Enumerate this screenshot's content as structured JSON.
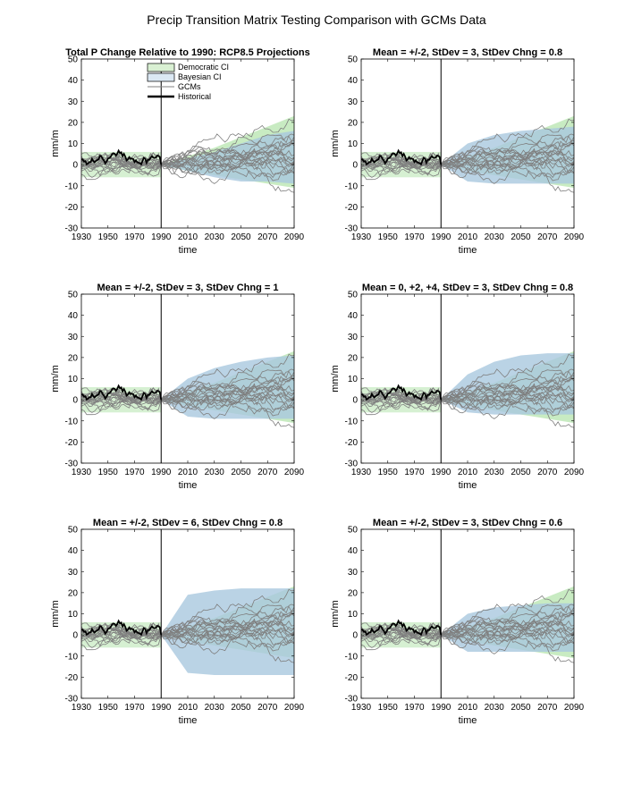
{
  "figure_title": "Precip Transition Matrix Testing Comparison with GCMs Data",
  "legend": {
    "entries": [
      {
        "label": "Democratic CI",
        "kind": "patch",
        "color": "#d9f0d3"
      },
      {
        "label": "Bayesian CI",
        "kind": "patch",
        "color": "#dbe8f3"
      },
      {
        "label": "GCMs",
        "kind": "line",
        "color": "#808080"
      },
      {
        "label": "Historical",
        "kind": "line",
        "color": "#000000"
      }
    ]
  },
  "colors": {
    "democratic_ci": "#b5e4ad",
    "bayesian_ci": "#a9c8df",
    "gcm": "#7f7f7f",
    "historical": "#000000"
  },
  "chart_data": [
    {
      "type": "line",
      "title": "Total P Change Relative to 1990: RCP8.5 Projections",
      "xlabel": "time",
      "ylabel": "mm/m",
      "xlim": [
        1930,
        2090
      ],
      "ylim": [
        -30,
        50
      ],
      "xticks": [
        1930,
        1950,
        1970,
        1990,
        2010,
        2030,
        2050,
        2070,
        2090
      ],
      "yticks": [
        -30,
        -20,
        -10,
        0,
        10,
        20,
        30,
        40,
        50
      ],
      "vline_x": 1990,
      "democratic_ci": {
        "x": [
          1990,
          2010,
          2030,
          2050,
          2070,
          2090
        ],
        "upper": [
          0,
          4,
          8,
          13,
          18,
          23
        ],
        "lower": [
          0,
          -3,
          -5,
          -7,
          -9,
          -11
        ]
      },
      "bayesian_ci": {
        "x": [
          1990,
          2010,
          2030,
          2050,
          2070,
          2090
        ],
        "upper": [
          0,
          3,
          6,
          10,
          14,
          16
        ],
        "lower": [
          0,
          -3,
          -6,
          -8,
          -8,
          -9
        ]
      },
      "historical_ci": {
        "upper": 6,
        "lower": -6
      },
      "legend": true
    },
    {
      "type": "line",
      "title": "Mean = +/-2, StDev = 3, StDev Chng = 0.8",
      "xlabel": "time",
      "ylabel": "mm/m",
      "xlim": [
        1930,
        2090
      ],
      "ylim": [
        -30,
        50
      ],
      "xticks": [
        1930,
        1950,
        1970,
        1990,
        2010,
        2030,
        2050,
        2070,
        2090
      ],
      "yticks": [
        -30,
        -20,
        -10,
        0,
        10,
        20,
        30,
        40,
        50
      ],
      "vline_x": 1990,
      "democratic_ci": {
        "x": [
          1990,
          2010,
          2030,
          2050,
          2070,
          2090
        ],
        "upper": [
          0,
          4,
          8,
          13,
          18,
          23
        ],
        "lower": [
          0,
          -3,
          -5,
          -7,
          -9,
          -11
        ]
      },
      "bayesian_ci": {
        "x": [
          1990,
          2010,
          2030,
          2050,
          2070,
          2090
        ],
        "upper": [
          0,
          10,
          14,
          16,
          17,
          18
        ],
        "lower": [
          0,
          -8,
          -9,
          -9,
          -9,
          -9
        ]
      },
      "historical_ci": {
        "upper": 6,
        "lower": -6
      },
      "legend": false
    },
    {
      "type": "line",
      "title": "Mean = +/-2, StDev = 3, StDev Chng = 1",
      "xlabel": "time",
      "ylabel": "mm/m",
      "xlim": [
        1930,
        2090
      ],
      "ylim": [
        -30,
        50
      ],
      "xticks": [
        1930,
        1950,
        1970,
        1990,
        2010,
        2030,
        2050,
        2070,
        2090
      ],
      "yticks": [
        -30,
        -20,
        -10,
        0,
        10,
        20,
        30,
        40,
        50
      ],
      "vline_x": 1990,
      "democratic_ci": {
        "x": [
          1990,
          2010,
          2030,
          2050,
          2070,
          2090
        ],
        "upper": [
          0,
          4,
          8,
          13,
          18,
          23
        ],
        "lower": [
          0,
          -3,
          -5,
          -7,
          -9,
          -11
        ]
      },
      "bayesian_ci": {
        "x": [
          1990,
          2010,
          2030,
          2050,
          2070,
          2090
        ],
        "upper": [
          0,
          10,
          15,
          18,
          20,
          21
        ],
        "lower": [
          0,
          -8,
          -9,
          -9,
          -9,
          -9
        ]
      },
      "historical_ci": {
        "upper": 6,
        "lower": -6
      },
      "legend": false
    },
    {
      "type": "line",
      "title": "Mean = 0, +2, +4, StDev = 3, StDev Chng = 0.8",
      "xlabel": "time",
      "ylabel": "mm/m",
      "xlim": [
        1930,
        2090
      ],
      "ylim": [
        -30,
        50
      ],
      "xticks": [
        1930,
        1950,
        1970,
        1990,
        2010,
        2030,
        2050,
        2070,
        2090
      ],
      "yticks": [
        -30,
        -20,
        -10,
        0,
        10,
        20,
        30,
        40,
        50
      ],
      "vline_x": 1990,
      "democratic_ci": {
        "x": [
          1990,
          2010,
          2030,
          2050,
          2070,
          2090
        ],
        "upper": [
          0,
          4,
          8,
          13,
          18,
          23
        ],
        "lower": [
          0,
          -3,
          -5,
          -7,
          -9,
          -11
        ]
      },
      "bayesian_ci": {
        "x": [
          1990,
          2010,
          2030,
          2050,
          2070,
          2090
        ],
        "upper": [
          0,
          12,
          18,
          21,
          22,
          22
        ],
        "lower": [
          0,
          -6,
          -7,
          -7,
          -7,
          -7
        ]
      },
      "historical_ci": {
        "upper": 6,
        "lower": -6
      },
      "legend": false
    },
    {
      "type": "line",
      "title": "Mean = +/-2, StDev = 6, StDev Chng = 0.8",
      "xlabel": "time",
      "ylabel": "mm/m",
      "xlim": [
        1930,
        2090
      ],
      "ylim": [
        -30,
        50
      ],
      "xticks": [
        1930,
        1950,
        1970,
        1990,
        2010,
        2030,
        2050,
        2070,
        2090
      ],
      "yticks": [
        -30,
        -20,
        -10,
        0,
        10,
        20,
        30,
        40,
        50
      ],
      "vline_x": 1990,
      "democratic_ci": {
        "x": [
          1990,
          2010,
          2030,
          2050,
          2070,
          2090
        ],
        "upper": [
          0,
          4,
          8,
          13,
          18,
          23
        ],
        "lower": [
          0,
          -3,
          -5,
          -7,
          -9,
          -11
        ]
      },
      "bayesian_ci": {
        "x": [
          1990,
          2010,
          2030,
          2050,
          2070,
          2090
        ],
        "upper": [
          0,
          19,
          21,
          22,
          22,
          22
        ],
        "lower": [
          0,
          -18,
          -19,
          -19,
          -19,
          -19
        ]
      },
      "historical_ci": {
        "upper": 6,
        "lower": -6
      },
      "legend": false
    },
    {
      "type": "line",
      "title": "Mean = +/-2, StDev = 3, StDev Chng = 0.6",
      "xlabel": "time",
      "ylabel": "mm/m",
      "xlim": [
        1930,
        2090
      ],
      "ylim": [
        -30,
        50
      ],
      "xticks": [
        1930,
        1950,
        1970,
        1990,
        2010,
        2030,
        2050,
        2070,
        2090
      ],
      "yticks": [
        -30,
        -20,
        -10,
        0,
        10,
        20,
        30,
        40,
        50
      ],
      "vline_x": 1990,
      "democratic_ci": {
        "x": [
          1990,
          2010,
          2030,
          2050,
          2070,
          2090
        ],
        "upper": [
          0,
          4,
          8,
          13,
          18,
          23
        ],
        "lower": [
          0,
          -3,
          -5,
          -7,
          -9,
          -11
        ]
      },
      "bayesian_ci": {
        "x": [
          1990,
          2010,
          2030,
          2050,
          2070,
          2090
        ],
        "upper": [
          0,
          10,
          13,
          14,
          15,
          15
        ],
        "lower": [
          0,
          -8,
          -8,
          -8,
          -8,
          -8
        ]
      },
      "historical_ci": {
        "upper": 6,
        "lower": -6
      },
      "legend": false
    }
  ]
}
